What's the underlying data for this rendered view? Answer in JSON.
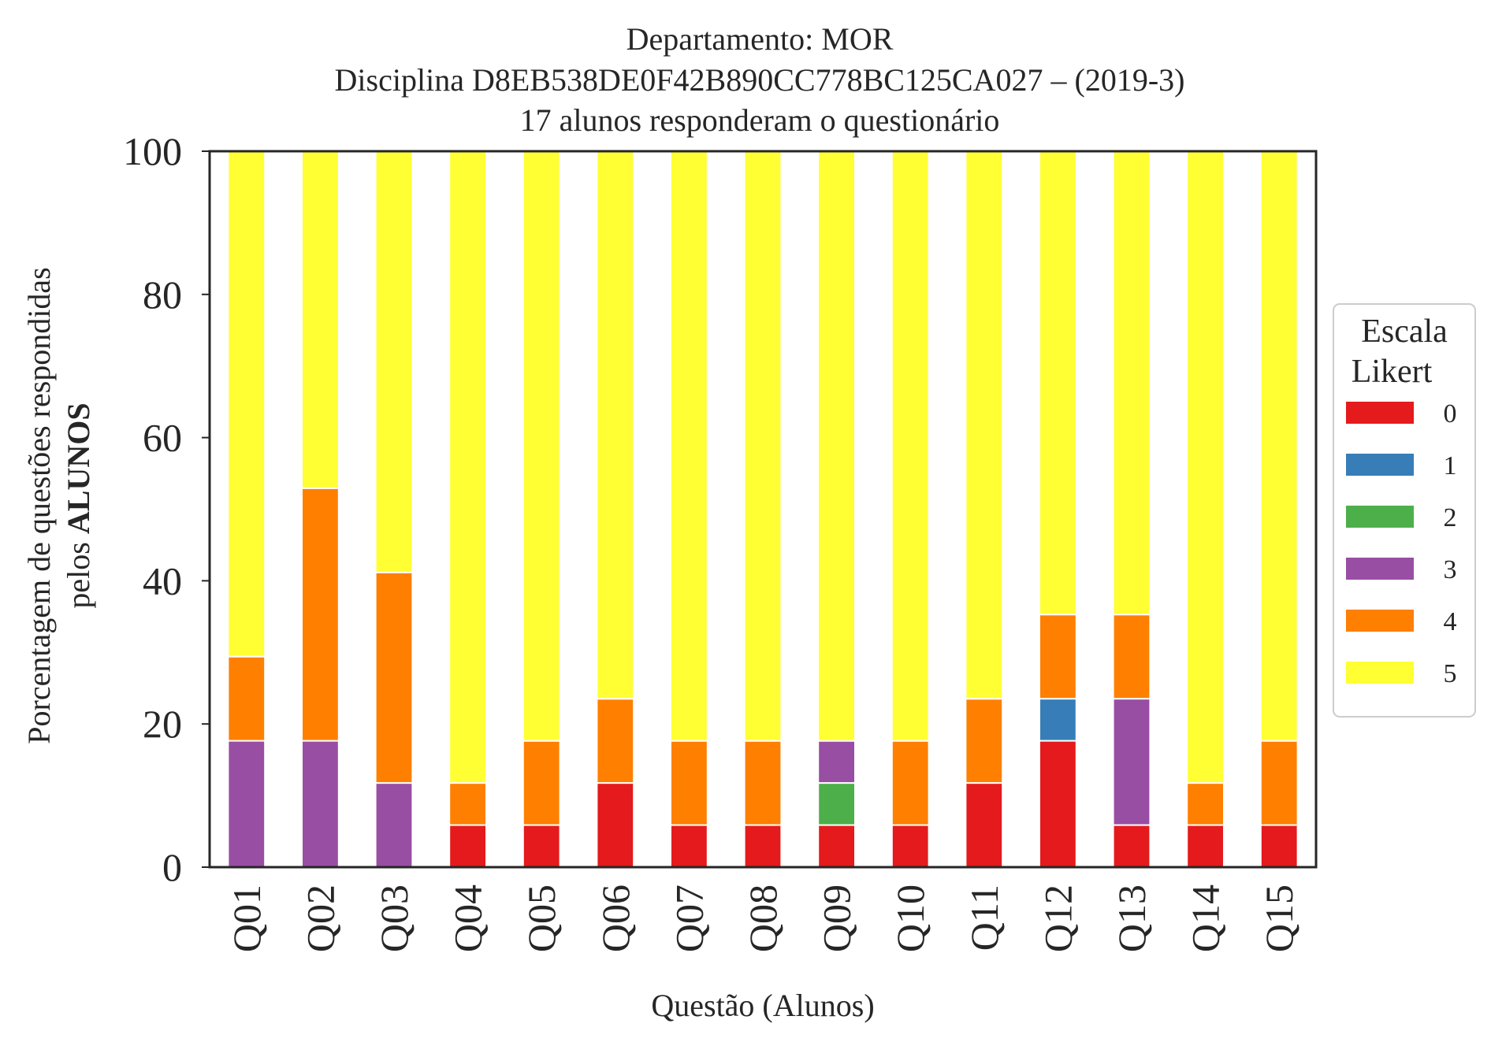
{
  "chart_data": {
    "type": "bar",
    "stacked": true,
    "title": [
      "Departamento: MOR",
      "Disciplina D8EB538DE0F42B890CC778BC125CA027 – (2019-3)",
      "17 alunos responderam o questionário"
    ],
    "xlabel": "Questão (Alunos)",
    "ylabel_line1": "Porcentagem de questões respondidas",
    "ylabel_line2_prefix": "pelos",
    "ylabel_line2_bold": "ALUNOS",
    "ylim": [
      0,
      100
    ],
    "yticks": [
      0,
      20,
      40,
      60,
      80,
      100
    ],
    "categories": [
      "Q01",
      "Q02",
      "Q03",
      "Q04",
      "Q05",
      "Q06",
      "Q07",
      "Q08",
      "Q09",
      "Q10",
      "Q11",
      "Q12",
      "Q13",
      "Q14",
      "Q15"
    ],
    "legend": {
      "title_line1": "Escala",
      "title_line2": "Likert",
      "placement": "right"
    },
    "series": [
      {
        "name": "0",
        "color": "#e41a1c",
        "values": [
          0,
          0,
          0,
          5.88,
          5.88,
          11.76,
          5.88,
          5.88,
          5.88,
          5.88,
          11.76,
          17.65,
          5.88,
          5.88,
          5.88
        ]
      },
      {
        "name": "1",
        "color": "#377eb8",
        "values": [
          0,
          0,
          0,
          0,
          0,
          0,
          0,
          0,
          0,
          0,
          0,
          5.88,
          0,
          0,
          0
        ]
      },
      {
        "name": "2",
        "color": "#4daf4a",
        "values": [
          0,
          0,
          0,
          0,
          0,
          0,
          0,
          0,
          5.88,
          0,
          0,
          0,
          0,
          0,
          0
        ]
      },
      {
        "name": "3",
        "color": "#984ea3",
        "values": [
          17.65,
          17.65,
          11.76,
          0,
          0,
          0,
          0,
          0,
          5.88,
          0,
          0,
          0,
          17.65,
          0,
          0
        ]
      },
      {
        "name": "4",
        "color": "#ff7f00",
        "values": [
          11.76,
          35.29,
          29.41,
          5.88,
          11.76,
          11.76,
          11.76,
          11.76,
          0,
          11.76,
          11.76,
          11.76,
          11.76,
          5.88,
          11.76
        ]
      },
      {
        "name": "5",
        "color": "#ffff33",
        "values": [
          70.59,
          47.06,
          58.82,
          88.24,
          82.35,
          76.47,
          82.35,
          82.35,
          82.35,
          82.35,
          76.47,
          64.71,
          64.71,
          88.24,
          82.35
        ]
      }
    ]
  }
}
